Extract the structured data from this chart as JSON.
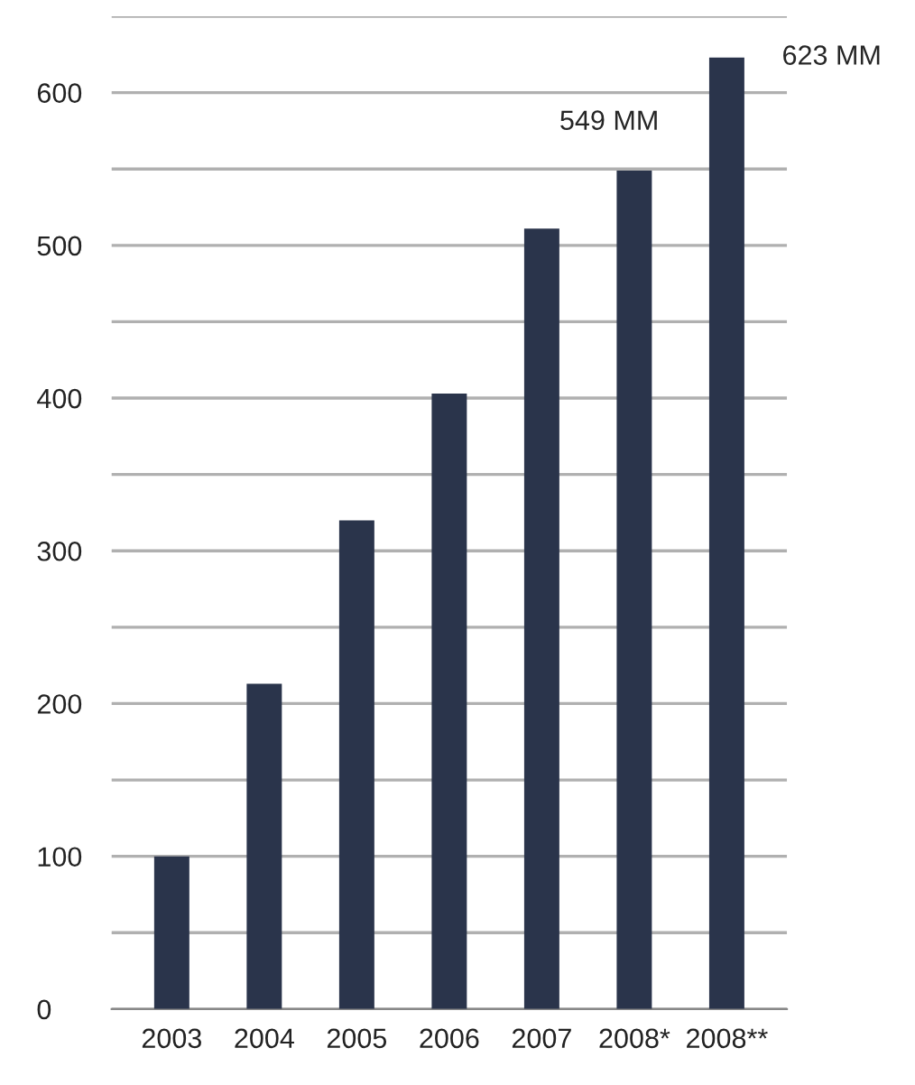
{
  "chart_data": {
    "type": "bar",
    "categories": [
      "2003",
      "2004",
      "2005",
      "2006",
      "2007",
      "2008*",
      "2008**"
    ],
    "values": [
      100,
      213,
      320,
      403,
      511,
      549,
      623
    ],
    "color": "#2a344b",
    "ylim": [
      0,
      650
    ],
    "yticks": [
      0,
      {
        "value": 50,
        "label": null
      },
      100,
      {
        "value": 150,
        "label": null
      },
      200,
      {
        "value": 250,
        "label": null
      },
      300,
      {
        "value": 350,
        "label": null
      },
      400,
      {
        "value": 450,
        "label": null
      },
      500,
      {
        "value": 550,
        "label": null
      },
      600,
      {
        "value": 650,
        "label": null
      }
    ],
    "grid": "y",
    "annotations": [
      {
        "text": "549 MM",
        "x": "2008*",
        "y": 549
      },
      {
        "text": "623 MM",
        "x": "2008**",
        "y": 623
      }
    ]
  }
}
